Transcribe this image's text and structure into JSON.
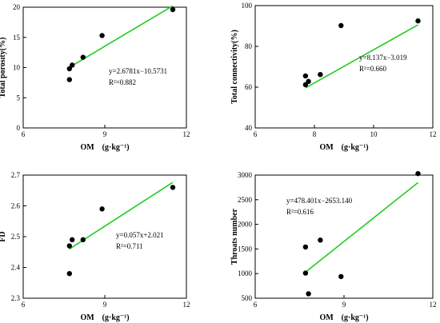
{
  "chart_data": [
    {
      "type": "scatter",
      "xlabel": "OM　(g·kg⁻¹)",
      "ylabel": "Total porosity(%)",
      "xlim": [
        6,
        12
      ],
      "ylim": [
        0,
        20
      ],
      "xticks": [
        6,
        9,
        12
      ],
      "yticks": [
        0,
        5,
        10,
        15,
        20
      ],
      "points": [
        {
          "x": 7.7,
          "y": 9.8
        },
        {
          "x": 7.7,
          "y": 8.0
        },
        {
          "x": 7.8,
          "y": 10.4
        },
        {
          "x": 8.2,
          "y": 11.7
        },
        {
          "x": 8.9,
          "y": 15.3
        },
        {
          "x": 11.5,
          "y": 19.6
        }
      ],
      "fit": {
        "slope": 2.6781,
        "intercept": -10.5731,
        "x_range": [
          7.7,
          11.5
        ]
      },
      "equation": "y=2.6781x−10.5731",
      "r2": "R²=0.882"
    },
    {
      "type": "scatter",
      "xlabel": "OM　(g·kg⁻¹)",
      "ylabel": "Total connectivity(%)",
      "xlim": [
        6,
        12
      ],
      "ylim": [
        40,
        100
      ],
      "xticks": [
        6,
        8,
        10,
        12
      ],
      "yticks": [
        40,
        60,
        80,
        100
      ],
      "points": [
        {
          "x": 7.7,
          "y": 65.5
        },
        {
          "x": 7.7,
          "y": 61.2
        },
        {
          "x": 7.8,
          "y": 62.8
        },
        {
          "x": 8.2,
          "y": 66.2
        },
        {
          "x": 8.9,
          "y": 90.2
        },
        {
          "x": 11.5,
          "y": 92.5
        }
      ],
      "fit": {
        "slope": 8.137,
        "intercept": -3.019,
        "x_range": [
          7.7,
          11.5
        ]
      },
      "equation": "y=8.137x−3.019",
      "r2": "R²=0.660"
    },
    {
      "type": "scatter",
      "xlabel": "OM　(g·kg⁻¹)",
      "ylabel": "FD",
      "xlim": [
        6,
        12
      ],
      "ylim": [
        2.3,
        2.7
      ],
      "xticks": [
        6,
        9,
        12
      ],
      "yticks": [
        2.3,
        2.4,
        2.5,
        2.6,
        2.7
      ],
      "points": [
        {
          "x": 7.7,
          "y": 2.47
        },
        {
          "x": 7.7,
          "y": 2.38
        },
        {
          "x": 7.8,
          "y": 2.49
        },
        {
          "x": 8.2,
          "y": 2.49
        },
        {
          "x": 8.9,
          "y": 2.59
        },
        {
          "x": 11.5,
          "y": 2.66
        }
      ],
      "fit": {
        "slope": 0.057,
        "intercept": 2.021,
        "x_range": [
          7.7,
          11.5
        ]
      },
      "equation": "y=0.057x+2.021",
      "r2": "R²=0.711"
    },
    {
      "type": "scatter",
      "xlabel": "OM　(g·kg⁻¹)",
      "ylabel": "Throats number",
      "xlim": [
        6,
        12
      ],
      "ylim": [
        500,
        3000
      ],
      "xticks": [
        6,
        9,
        12
      ],
      "yticks": [
        500,
        1000,
        1500,
        2000,
        2500,
        3000
      ],
      "points": [
        {
          "x": 7.7,
          "y": 1540
        },
        {
          "x": 7.7,
          "y": 1010
        },
        {
          "x": 7.8,
          "y": 590
        },
        {
          "x": 8.2,
          "y": 1680
        },
        {
          "x": 8.9,
          "y": 940
        },
        {
          "x": 11.5,
          "y": 3030
        }
      ],
      "fit": {
        "slope": 478.401,
        "intercept": -2653.14,
        "x_range": [
          7.7,
          11.5
        ]
      },
      "equation": "y=478.401x−2653.140",
      "r2": "R²=0.616"
    }
  ]
}
